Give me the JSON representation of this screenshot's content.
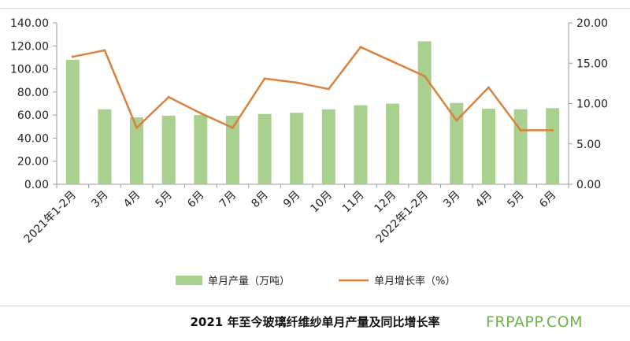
{
  "chart_data": {
    "type": "bar+line",
    "categories": [
      "2021年1-2月",
      "3月",
      "4月",
      "5月",
      "6月",
      "7月",
      "8月",
      "9月",
      "10月",
      "11月",
      "12月",
      "2022年1-2月",
      "3月",
      "4月",
      "5月",
      "6月"
    ],
    "series": [
      {
        "name": "单月产量（万吨）",
        "type": "bar",
        "axis": "left",
        "values": [
          108.0,
          65.0,
          58.0,
          59.5,
          60.0,
          59.5,
          61.0,
          62.0,
          65.0,
          68.5,
          70.0,
          124.0,
          70.5,
          65.5,
          65.0,
          66.0
        ]
      },
      {
        "name": "单月增长率（%）",
        "type": "line",
        "axis": "right",
        "values": [
          15.8,
          16.6,
          7.0,
          10.8,
          8.8,
          7.0,
          13.1,
          12.6,
          11.8,
          17.0,
          15.2,
          13.4,
          7.9,
          12.0,
          6.7,
          6.7
        ]
      }
    ],
    "left_axis": {
      "min": 0,
      "max": 140,
      "ticks": [
        "0.00",
        "20.00",
        "40.00",
        "60.00",
        "80.00",
        "100.00",
        "120.00",
        "140.00"
      ]
    },
    "right_axis": {
      "min": 0,
      "max": 20,
      "ticks": [
        "0.00",
        "5.00",
        "10.00",
        "15.00",
        "20.00"
      ]
    },
    "legend_position": "bottom",
    "colors": {
      "bar": "#a9d08e",
      "line": "#d9823f",
      "axis": "#9a9a9a"
    }
  },
  "caption": "2021 年至今玻璃纤维纱单月产量及同比增长率",
  "watermark": "FRPAPP.COM"
}
